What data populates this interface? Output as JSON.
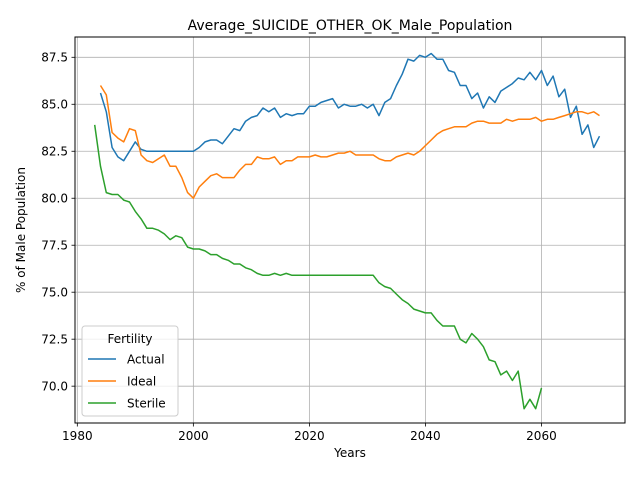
{
  "chart_data": {
    "type": "line",
    "title": "Average_SUICIDE_OTHER_OK_Male_Population",
    "xlabel": "Years",
    "ylabel": "% of Male Population",
    "xlim": [
      1979.6,
      2074.4
    ],
    "ylim": [
      68.04,
      88.58
    ],
    "xticks": [
      1980,
      2000,
      2020,
      2040,
      2060
    ],
    "xtick_labels": [
      "1980",
      "2000",
      "2020",
      "2040",
      "2060"
    ],
    "yticks": [
      70.0,
      72.5,
      75.0,
      77.5,
      80.0,
      82.5,
      85.0,
      87.5
    ],
    "ytick_labels": [
      "70.0",
      "72.5",
      "75.0",
      "77.5",
      "80.0",
      "82.5",
      "85.0",
      "87.5"
    ],
    "grid": true,
    "legend": {
      "title": "Fertility",
      "placement": "lower-left"
    },
    "series": [
      {
        "name": "Actual",
        "color": "#1f77b4",
        "x": [
          1984,
          1985,
          1986,
          1987,
          1988,
          1989,
          1990,
          1991,
          1992,
          1993,
          1994,
          1995,
          1996,
          1997,
          1998,
          1999,
          2000,
          2001,
          2002,
          2003,
          2004,
          2005,
          2006,
          2007,
          2008,
          2009,
          2010,
          2011,
          2012,
          2013,
          2014,
          2015,
          2016,
          2017,
          2018,
          2019,
          2020,
          2021,
          2022,
          2023,
          2024,
          2025,
          2026,
          2027,
          2028,
          2029,
          2030,
          2031,
          2032,
          2033,
          2034,
          2035,
          2036,
          2037,
          2038,
          2039,
          2040,
          2041,
          2042,
          2043,
          2044,
          2045,
          2046,
          2047,
          2048,
          2049,
          2050,
          2051,
          2052,
          2053,
          2054,
          2055,
          2056,
          2057,
          2058,
          2059,
          2060,
          2061,
          2062,
          2063,
          2064,
          2065,
          2066,
          2067,
          2068,
          2069,
          2070
        ],
        "values": [
          85.6,
          84.6,
          82.7,
          82.2,
          82.0,
          82.5,
          83.0,
          82.6,
          82.5,
          82.5,
          82.5,
          82.5,
          82.5,
          82.5,
          82.5,
          82.5,
          82.5,
          82.7,
          83.0,
          83.1,
          83.1,
          82.9,
          83.3,
          83.7,
          83.6,
          84.1,
          84.3,
          84.4,
          84.8,
          84.6,
          84.8,
          84.3,
          84.5,
          84.4,
          84.5,
          84.5,
          84.9,
          84.9,
          85.1,
          85.2,
          85.3,
          84.8,
          85.0,
          84.9,
          84.9,
          85.0,
          84.8,
          85.0,
          84.4,
          85.1,
          85.3,
          86.0,
          86.6,
          87.4,
          87.3,
          87.6,
          87.5,
          87.7,
          87.4,
          87.4,
          86.8,
          86.7,
          86.0,
          86.0,
          85.3,
          85.6,
          84.8,
          85.4,
          85.1,
          85.7,
          85.9,
          86.1,
          86.4,
          86.3,
          86.7,
          86.3,
          86.8,
          86.0,
          86.5,
          85.4,
          85.8,
          84.3,
          84.9,
          83.4,
          83.9,
          82.7,
          83.3
        ]
      },
      {
        "name": "Ideal",
        "color": "#ff7f0e",
        "x": [
          1984,
          1985,
          1986,
          1987,
          1988,
          1989,
          1990,
          1991,
          1992,
          1993,
          1994,
          1995,
          1996,
          1997,
          1998,
          1999,
          2000,
          2001,
          2002,
          2003,
          2004,
          2005,
          2006,
          2007,
          2008,
          2009,
          2010,
          2011,
          2012,
          2013,
          2014,
          2015,
          2016,
          2017,
          2018,
          2019,
          2020,
          2021,
          2022,
          2023,
          2024,
          2025,
          2026,
          2027,
          2028,
          2029,
          2030,
          2031,
          2032,
          2033,
          2034,
          2035,
          2036,
          2037,
          2038,
          2039,
          2040,
          2041,
          2042,
          2043,
          2044,
          2045,
          2046,
          2047,
          2048,
          2049,
          2050,
          2051,
          2052,
          2053,
          2054,
          2055,
          2056,
          2057,
          2058,
          2059,
          2060,
          2061,
          2062,
          2063,
          2064,
          2065,
          2066,
          2067,
          2068,
          2069,
          2070
        ],
        "values": [
          86.0,
          85.5,
          83.5,
          83.2,
          83.0,
          83.7,
          83.6,
          82.3,
          82.0,
          81.9,
          82.1,
          82.3,
          81.7,
          81.7,
          81.1,
          80.3,
          80.0,
          80.6,
          80.9,
          81.2,
          81.3,
          81.1,
          81.1,
          81.1,
          81.5,
          81.8,
          81.8,
          82.2,
          82.1,
          82.1,
          82.2,
          81.8,
          82.0,
          82.0,
          82.2,
          82.2,
          82.2,
          82.3,
          82.2,
          82.2,
          82.3,
          82.4,
          82.4,
          82.5,
          82.3,
          82.3,
          82.3,
          82.3,
          82.1,
          82.0,
          82.0,
          82.2,
          82.3,
          82.4,
          82.3,
          82.5,
          82.8,
          83.1,
          83.4,
          83.6,
          83.7,
          83.8,
          83.8,
          83.8,
          84.0,
          84.1,
          84.1,
          84.0,
          84.0,
          84.0,
          84.2,
          84.1,
          84.2,
          84.2,
          84.2,
          84.3,
          84.1,
          84.2,
          84.2,
          84.3,
          84.4,
          84.5,
          84.6,
          84.6,
          84.5,
          84.6,
          84.4
        ]
      },
      {
        "name": "Sterile",
        "color": "#2ca02c",
        "x": [
          1983,
          1984,
          1985,
          1986,
          1987,
          1988,
          1989,
          1990,
          1991,
          1992,
          1993,
          1994,
          1995,
          1996,
          1997,
          1998,
          1999,
          2000,
          2001,
          2002,
          2003,
          2004,
          2005,
          2006,
          2007,
          2008,
          2009,
          2010,
          2011,
          2012,
          2013,
          2014,
          2015,
          2016,
          2017,
          2018,
          2019,
          2020,
          2021,
          2022,
          2023,
          2024,
          2025,
          2026,
          2027,
          2028,
          2029,
          2030,
          2031,
          2032,
          2033,
          2034,
          2035,
          2036,
          2037,
          2038,
          2039,
          2040,
          2041,
          2042,
          2043,
          2044,
          2045,
          2046,
          2047,
          2048,
          2049,
          2050,
          2051,
          2052,
          2053,
          2054,
          2055,
          2056,
          2057,
          2058,
          2059,
          2060
        ],
        "values": [
          83.9,
          81.7,
          80.3,
          80.2,
          80.2,
          79.9,
          79.8,
          79.3,
          78.9,
          78.4,
          78.4,
          78.3,
          78.1,
          77.8,
          78.0,
          77.9,
          77.4,
          77.3,
          77.3,
          77.2,
          77.0,
          77.0,
          76.8,
          76.7,
          76.5,
          76.5,
          76.3,
          76.2,
          76.0,
          75.9,
          75.9,
          76.0,
          75.9,
          76.0,
          75.9,
          75.9,
          75.9,
          75.9,
          75.9,
          75.9,
          75.9,
          75.9,
          75.9,
          75.9,
          75.9,
          75.9,
          75.9,
          75.9,
          75.9,
          75.5,
          75.3,
          75.2,
          74.9,
          74.6,
          74.4,
          74.1,
          74.0,
          73.9,
          73.9,
          73.5,
          73.2,
          73.2,
          73.2,
          72.5,
          72.3,
          72.8,
          72.5,
          72.1,
          71.4,
          71.3,
          70.6,
          70.8,
          70.3,
          70.8,
          68.8,
          69.3,
          68.8,
          69.9
        ]
      }
    ]
  }
}
